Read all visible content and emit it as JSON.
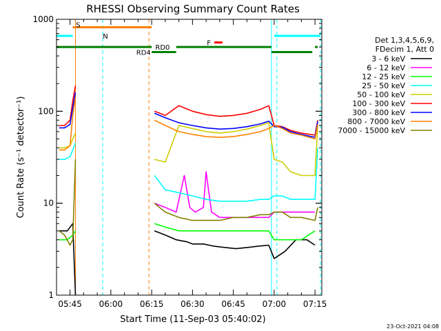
{
  "chart_data": {
    "type": "line",
    "title": "RHESSI Observing Summary Count Rates",
    "xlabel": "Start Time (11-Sep-03 05:40:02)",
    "ylabel": "Count Rate (s⁻¹ detector⁻¹)",
    "yscale": "log",
    "ylim": [
      1,
      1000
    ],
    "xlim": [
      "05:40:02",
      "07:17:30"
    ],
    "x_ticks": [
      "05:45",
      "06:00",
      "06:15",
      "06:30",
      "06:45",
      "07:00",
      "07:15"
    ],
    "y_tick_labels": [
      {
        "value": 1,
        "label": "1"
      },
      {
        "value": 10,
        "label": "10"
      },
      {
        "value": 100,
        "label": "100"
      },
      {
        "value": 1000,
        "label": "1000"
      }
    ],
    "legend_header": [
      "Det 1,3,4,5,6,9,",
      "FDecim 1, Att 0"
    ],
    "legend_position": "right",
    "series": [
      {
        "name": "3 - 6 keV",
        "color": "#000000",
        "x": [
          "05:41",
          "05:44",
          "05:46",
          "05:47",
          "06:16",
          "06:20",
          "06:24",
          "06:28",
          "06:30",
          "06:34",
          "06:38",
          "06:42",
          "06:46",
          "06:50",
          "06:54",
          "06:58",
          "07:00",
          "07:04",
          "07:08",
          "07:12",
          "07:15"
        ],
        "y": [
          5,
          5,
          6,
          1,
          5,
          4.5,
          4,
          3.8,
          3.6,
          3.6,
          3.4,
          3.3,
          3.2,
          3.3,
          3.4,
          3.5,
          2.5,
          3,
          4,
          4,
          3.5
        ]
      },
      {
        "name": "6 - 12 keV",
        "color": "#ff00ff",
        "x": [
          "05:47",
          "06:16",
          "06:20",
          "06:24",
          "06:27",
          "06:29",
          "06:31",
          "06:34",
          "06:35",
          "06:37",
          "06:40",
          "06:45",
          "06:50",
          "06:55",
          "06:58",
          "07:00",
          "07:05",
          "07:10",
          "07:15"
        ],
        "y": [
          1.3,
          10,
          9,
          8,
          20,
          9,
          8,
          9,
          22,
          8,
          7,
          7,
          7,
          7,
          7,
          8,
          8,
          8,
          8
        ]
      },
      {
        "name": "12 - 25 keV",
        "color": "#00ff00",
        "x": [
          "05:41",
          "05:44",
          "05:46",
          "05:47",
          "06:16",
          "06:20",
          "06:25",
          "06:30",
          "06:35",
          "06:40",
          "06:45",
          "06:50",
          "06:55",
          "06:58",
          "07:00",
          "07:05",
          "07:10",
          "07:15"
        ],
        "y": [
          4,
          4,
          4.5,
          5,
          6,
          5.5,
          5,
          5,
          5,
          5,
          5,
          5,
          5,
          5,
          4,
          4,
          4,
          5
        ]
      },
      {
        "name": "25 - 50 keV",
        "color": "#00ffff",
        "x": [
          "05:41",
          "05:43",
          "05:45",
          "05:46",
          "05:47",
          "06:16",
          "06:20",
          "06:25",
          "06:30",
          "06:35",
          "06:40",
          "06:45",
          "06:50",
          "06:55",
          "06:58",
          "07:00",
          "07:03",
          "07:06",
          "07:10",
          "07:15",
          "07:16"
        ],
        "y": [
          30,
          30,
          32,
          38,
          45,
          20,
          14,
          13,
          12,
          11,
          10.5,
          10.5,
          10.5,
          11,
          11,
          12,
          12,
          11,
          11,
          11,
          40
        ]
      },
      {
        "name": "50 - 100 keV",
        "color": "#cccc00",
        "x": [
          "05:41",
          "05:43",
          "05:45",
          "05:46",
          "05:47",
          "06:16",
          "06:20",
          "06:25",
          "06:30",
          "06:35",
          "06:40",
          "06:45",
          "06:50",
          "06:55",
          "06:58",
          "07:00",
          "07:03",
          "07:06",
          "07:10",
          "07:15",
          "07:16"
        ],
        "y": [
          40,
          40,
          42,
          50,
          58,
          30,
          28,
          70,
          65,
          60,
          58,
          60,
          64,
          70,
          75,
          30,
          28,
          22,
          20,
          20,
          70
        ]
      },
      {
        "name": "100 - 300 keV",
        "color": "#ff0000",
        "x": [
          "05:41",
          "05:43",
          "05:45",
          "05:46",
          "05:47",
          "06:16",
          "06:20",
          "06:25",
          "06:30",
          "06:35",
          "06:40",
          "06:45",
          "06:50",
          "06:55",
          "06:58",
          "07:00",
          "07:03",
          "07:06",
          "07:10",
          "07:15",
          "07:16"
        ],
        "y": [
          70,
          70,
          80,
          130,
          190,
          100,
          90,
          115,
          100,
          92,
          88,
          90,
          95,
          105,
          115,
          70,
          68,
          62,
          58,
          55,
          80
        ]
      },
      {
        "name": "300 - 800 keV",
        "color": "#0000ff",
        "x": [
          "05:41",
          "05:43",
          "05:45",
          "05:46",
          "05:47",
          "06:16",
          "06:20",
          "06:25",
          "06:30",
          "06:35",
          "06:40",
          "06:45",
          "06:50",
          "06:55",
          "06:58",
          "07:00",
          "07:03",
          "07:06",
          "07:10",
          "07:15",
          "07:16"
        ],
        "y": [
          66,
          66,
          72,
          110,
          160,
          95,
          85,
          75,
          70,
          66,
          64,
          65,
          68,
          73,
          78,
          68,
          67,
          60,
          56,
          52,
          78
        ]
      },
      {
        "name": "800 - 7000 keV",
        "color": "#ff8000",
        "x": [
          "05:41",
          "05:43",
          "05:45",
          "05:46",
          "05:47",
          "06:16",
          "06:20",
          "06:25",
          "06:30",
          "06:35",
          "06:40",
          "06:45",
          "06:50",
          "06:55",
          "06:58",
          "07:00",
          "07:03",
          "07:06",
          "07:10",
          "07:15",
          "07:16"
        ],
        "y": [
          38,
          38,
          42,
          90,
          140,
          80,
          70,
          60,
          56,
          53,
          52,
          53,
          56,
          60,
          65,
          70,
          65,
          58,
          55,
          50,
          72
        ]
      },
      {
        "name": "7000 - 15000 keV",
        "color": "#808000",
        "x": [
          "05:41",
          "05:43",
          "05:45",
          "05:46",
          "05:47",
          "06:16",
          "06:20",
          "06:25",
          "06:30",
          "06:35",
          "06:40",
          "06:45",
          "06:50",
          "06:55",
          "06:58",
          "07:00",
          "07:03",
          "07:06",
          "07:10",
          "07:15",
          "07:16"
        ],
        "y": [
          5,
          4.5,
          3.5,
          4,
          30,
          10,
          8,
          7,
          6.5,
          6.5,
          6.5,
          7,
          7,
          7.5,
          7.5,
          8,
          8,
          7,
          7,
          6.5,
          9
        ]
      }
    ],
    "flags": [
      {
        "label": "S",
        "color": "#ff8000",
        "x": [
          "05:46",
          "06:15"
        ],
        "level": 820
      },
      {
        "label": "N",
        "color": "#00ffff",
        "x": [
          "05:40:02",
          "05:46"
        ],
        "level": 660
      },
      {
        "label": "N",
        "color": "#00ffff",
        "x": [
          "07:00",
          "07:17"
        ],
        "level": 660
      },
      {
        "label": "F",
        "color": "#ff0000",
        "x": [
          "06:38",
          "06:41"
        ],
        "level": 560
      },
      {
        "label": "RD0",
        "color": "#008000",
        "x": [
          "05:40:02",
          "06:15"
        ],
        "level": 500
      },
      {
        "label": "RD0",
        "color": "#008000",
        "x": [
          "06:24",
          "06:59"
        ],
        "level": 500
      },
      {
        "label": "RD0",
        "color": "#008000",
        "x": [
          "07:15",
          "07:16"
        ],
        "level": 500
      },
      {
        "label": "RD4",
        "color": "#008000",
        "x": [
          "06:15",
          "06:24"
        ],
        "level": 440
      },
      {
        "label": "RD4",
        "color": "#008000",
        "x": [
          "06:59",
          "07:14"
        ],
        "level": 440
      }
    ],
    "flag_labels": [
      {
        "text": "S",
        "color": "#ff8000",
        "x": "05:48",
        "level": 880
      },
      {
        "text": "N",
        "color": "#00ffff",
        "x": "05:58",
        "level": 660
      },
      {
        "text": "F",
        "color": "#ff0000",
        "x": "06:36",
        "level": 560
      },
      {
        "text": "RD0",
        "color": "#008000",
        "x": "06:19",
        "level": 500
      },
      {
        "text": "RD4",
        "color": "#008000",
        "x": "06:12",
        "level": 440
      }
    ],
    "vertical_markers": [
      {
        "x": "05:47",
        "color": "#ff8000",
        "style": "solid"
      },
      {
        "x": "05:57",
        "color": "#00ffff",
        "style": "dashed"
      },
      {
        "x": "06:14",
        "color": "#ff8000",
        "style": "dashed"
      },
      {
        "x": "06:59",
        "color": "#00ffff",
        "style": "solid"
      },
      {
        "x": "07:01",
        "color": "#00ffff",
        "style": "dashed"
      },
      {
        "x": "07:17",
        "color": "#00ffff",
        "style": "dashed"
      }
    ]
  },
  "footer": {
    "timestamp": "23-Oct-2021 04:08"
  }
}
